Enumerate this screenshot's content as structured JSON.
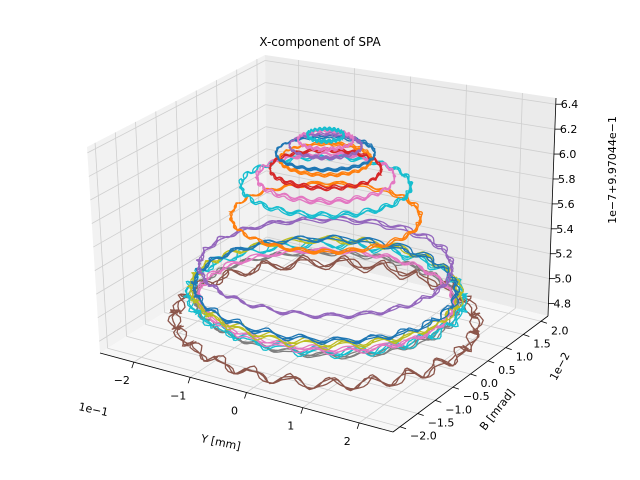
{
  "chart_data": {
    "type": "line",
    "projection": "3d",
    "title": "X-component of SPA",
    "xlabel": "Y [mm]",
    "ylabel": "B [mrad]",
    "zlabel": "",
    "x_offset_text": "1e−1",
    "y_offset_text": "1e−2",
    "z_offset_text": "1e−7+9.97044e−1",
    "x_ticks": [
      {
        "value": -2,
        "label": "−2"
      },
      {
        "value": -1,
        "label": "−1"
      },
      {
        "value": 0,
        "label": "0"
      },
      {
        "value": 1,
        "label": "1"
      },
      {
        "value": 2,
        "label": "2"
      }
    ],
    "y_ticks": [
      {
        "value": -2.0,
        "label": "−2.0"
      },
      {
        "value": -1.5,
        "label": "−1.5"
      },
      {
        "value": -1.0,
        "label": "−1.0"
      },
      {
        "value": -0.5,
        "label": "−0.5"
      },
      {
        "value": 0.0,
        "label": "0.0"
      },
      {
        "value": 0.5,
        "label": "0.5"
      },
      {
        "value": 1.0,
        "label": "1.0"
      },
      {
        "value": 1.5,
        "label": "1.5"
      },
      {
        "value": 2.0,
        "label": "2.0"
      }
    ],
    "z_ticks": [
      {
        "value": 4.8,
        "label": "4.8"
      },
      {
        "value": 5.0,
        "label": "5.0"
      },
      {
        "value": 5.2,
        "label": "5.2"
      },
      {
        "value": 5.4,
        "label": "5.4"
      },
      {
        "value": 5.6,
        "label": "5.6"
      },
      {
        "value": 5.8,
        "label": "5.8"
      },
      {
        "value": 6.0,
        "label": "6.0"
      },
      {
        "value": 6.2,
        "label": "6.2"
      },
      {
        "value": 6.4,
        "label": "6.4"
      }
    ],
    "xlim": [
      -2.6,
      2.6
    ],
    "ylim": [
      -2.2,
      2.2
    ],
    "zlim": [
      4.7,
      6.45
    ],
    "grid": true,
    "series": [
      {
        "color": "#8c564b",
        "radius_x": 2.35,
        "radius_y": 2.05,
        "z": 4.82,
        "noise": 0.12
      },
      {
        "color": "#7f7f7f",
        "radius_x": 2.05,
        "radius_y": 1.75,
        "z": 4.98,
        "noise": 0.05
      },
      {
        "color": "#17becf",
        "radius_x": 2.15,
        "radius_y": 1.85,
        "z": 5.03,
        "noise": 0.09
      },
      {
        "color": "#e377c2",
        "radius_x": 2.0,
        "radius_y": 1.7,
        "z": 5.01,
        "noise": 0.05
      },
      {
        "color": "#bcbd22",
        "radius_x": 2.1,
        "radius_y": 1.8,
        "z": 5.08,
        "noise": 0.07
      },
      {
        "color": "#1f77b4",
        "radius_x": 2.05,
        "radius_y": 1.75,
        "z": 5.1,
        "noise": 0.06
      },
      {
        "color": "#9467bd",
        "radius_x": 1.95,
        "radius_y": 1.7,
        "z": 5.28,
        "noise": 0.05
      },
      {
        "color": "#ff7f0e",
        "radius_x": 1.45,
        "radius_y": 1.25,
        "z": 5.69,
        "noise": 0.04
      },
      {
        "color": "#17becf",
        "radius_x": 1.3,
        "radius_y": 1.1,
        "z": 5.95,
        "noise": 0.05
      },
      {
        "color": "#e377c2",
        "radius_x": 1.05,
        "radius_y": 0.9,
        "z": 6.02,
        "noise": 0.04
      },
      {
        "color": "#d62728",
        "radius_x": 0.85,
        "radius_y": 0.72,
        "z": 6.09,
        "noise": 0.03
      },
      {
        "color": "#ff7f0e",
        "radius_x": 0.7,
        "radius_y": 0.6,
        "z": 6.17,
        "noise": 0.02
      },
      {
        "color": "#1f77b4",
        "radius_x": 0.75,
        "radius_y": 0.64,
        "z": 6.22,
        "noise": 0.02
      },
      {
        "color": "#9467bd",
        "radius_x": 0.55,
        "radius_y": 0.46,
        "z": 6.28,
        "noise": 0.02
      },
      {
        "color": "#e377c2",
        "radius_x": 0.42,
        "radius_y": 0.36,
        "z": 6.33,
        "noise": 0.02
      },
      {
        "color": "#17becf",
        "radius_x": 0.28,
        "radius_y": 0.24,
        "z": 6.37,
        "noise": 0.02
      }
    ]
  }
}
